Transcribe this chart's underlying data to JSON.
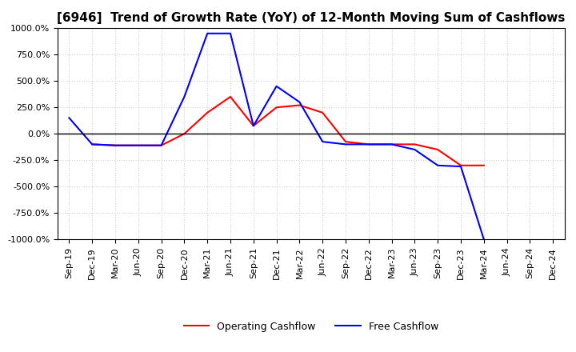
{
  "title": "[6946]  Trend of Growth Rate (YoY) of 12-Month Moving Sum of Cashflows",
  "ylim": [
    -1000,
    1000
  ],
  "yticks": [
    1000,
    750,
    500,
    250,
    0,
    -250,
    -500,
    -750,
    -1000
  ],
  "ytick_labels": [
    "1000.0%",
    "750.0%",
    "500.0%",
    "250.0%",
    "0.0%",
    "-250.0%",
    "-500.0%",
    "-750.0%",
    "-1000.0%"
  ],
  "xlabel_dates": [
    "Sep-19",
    "Dec-19",
    "Mar-20",
    "Jun-20",
    "Sep-20",
    "Dec-20",
    "Mar-21",
    "Jun-21",
    "Sep-21",
    "Dec-21",
    "Mar-22",
    "Jun-22",
    "Sep-22",
    "Dec-22",
    "Mar-23",
    "Jun-23",
    "Sep-23",
    "Dec-23",
    "Mar-24",
    "Jun-24",
    "Sep-24",
    "Dec-24"
  ],
  "operating_x": [
    1,
    2,
    3,
    4,
    5,
    6,
    7,
    8,
    9,
    10,
    11,
    12,
    13,
    14,
    15,
    16,
    17,
    18
  ],
  "operating_y": [
    -100,
    -110,
    -110,
    -110,
    0,
    200,
    350,
    75,
    250,
    270,
    200,
    -75,
    -100,
    -100,
    -100,
    -150,
    -300,
    -300
  ],
  "free_x": [
    0,
    1,
    2,
    3,
    4,
    5,
    6,
    7,
    8,
    9,
    10,
    11,
    12,
    13,
    14,
    15,
    16,
    17,
    18
  ],
  "free_y": [
    150,
    -100,
    -110,
    -110,
    -110,
    350,
    950,
    950,
    75,
    450,
    300,
    -75,
    -100,
    -100,
    -100,
    -150,
    -300,
    -310,
    -1000
  ],
  "operating_color": "#ff0000",
  "free_color": "#0000ff",
  "background_color": "#ffffff",
  "grid_color": "#d0d0d0",
  "title_fontsize": 11,
  "tick_fontsize": 8,
  "legend_labels": [
    "Operating Cashflow",
    "Free Cashflow"
  ],
  "linewidth": 1.5
}
